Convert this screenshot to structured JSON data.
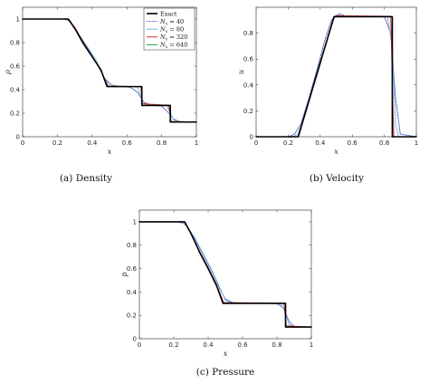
{
  "chart_data": [
    {
      "type": "line",
      "caption": "(a) Density",
      "xlabel": "x",
      "ylabel": "ρ",
      "xlim": [
        0,
        1
      ],
      "ylim": [
        0,
        1.1
      ],
      "xticks": [
        "0",
        "0.2",
        "0.4",
        "0.6",
        "0.8",
        "1"
      ],
      "yticks": [
        "0",
        "0.2",
        "0.4",
        "0.6",
        "0.8",
        "1"
      ],
      "legend": {
        "placement": "top-right",
        "entries": [
          "Exact",
          "N_x = 40",
          "N_x = 80",
          "N_x = 320",
          "N_x = 640"
        ]
      },
      "series": [
        {
          "name": "Exact",
          "color": "#000000",
          "points": [
            [
              0,
              1
            ],
            [
              0.263,
              1
            ],
            [
              0.3,
              0.92
            ],
            [
              0.35,
              0.79
            ],
            [
              0.4,
              0.68
            ],
            [
              0.45,
              0.57
            ],
            [
              0.486,
              0.426
            ],
            [
              0.686,
              0.426
            ],
            [
              0.686,
              0.266
            ],
            [
              0.85,
              0.266
            ],
            [
              0.85,
              0.125
            ],
            [
              1,
              0.125
            ]
          ]
        },
        {
          "name": "N_x = 40",
          "color": "#3b4cc0",
          "points": [
            [
              0,
              1
            ],
            [
              0.22,
              1
            ],
            [
              0.27,
              0.99
            ],
            [
              0.32,
              0.88
            ],
            [
              0.37,
              0.76
            ],
            [
              0.42,
              0.64
            ],
            [
              0.47,
              0.5
            ],
            [
              0.51,
              0.44
            ],
            [
              0.55,
              0.43
            ],
            [
              0.62,
              0.42
            ],
            [
              0.66,
              0.38
            ],
            [
              0.7,
              0.29
            ],
            [
              0.74,
              0.27
            ],
            [
              0.8,
              0.26
            ],
            [
              0.83,
              0.22
            ],
            [
              0.87,
              0.15
            ],
            [
              0.9,
              0.13
            ],
            [
              1,
              0.125
            ]
          ]
        },
        {
          "name": "N_x = 80",
          "color": "#6fb5e0",
          "points": [
            [
              0,
              1
            ],
            [
              0.24,
              1
            ],
            [
              0.27,
              0.98
            ],
            [
              0.32,
              0.88
            ],
            [
              0.37,
              0.77
            ],
            [
              0.42,
              0.66
            ],
            [
              0.47,
              0.5
            ],
            [
              0.5,
              0.43
            ],
            [
              0.55,
              0.43
            ],
            [
              0.66,
              0.425
            ],
            [
              0.68,
              0.35
            ],
            [
              0.7,
              0.28
            ],
            [
              0.75,
              0.27
            ],
            [
              0.83,
              0.265
            ],
            [
              0.85,
              0.2
            ],
            [
              0.87,
              0.14
            ],
            [
              0.9,
              0.127
            ],
            [
              1,
              0.125
            ]
          ]
        },
        {
          "name": "N_x = 320",
          "color": "#d62728",
          "points": [
            [
              0,
              1
            ],
            [
              0.26,
              1
            ],
            [
              0.3,
              0.93
            ],
            [
              0.35,
              0.8
            ],
            [
              0.4,
              0.68
            ],
            [
              0.45,
              0.57
            ],
            [
              0.49,
              0.43
            ],
            [
              0.68,
              0.426
            ],
            [
              0.69,
              0.28
            ],
            [
              0.84,
              0.268
            ],
            [
              0.855,
              0.13
            ],
            [
              1,
              0.125
            ]
          ]
        },
        {
          "name": "N_x = 640",
          "color": "#2ca02c",
          "points": [
            [
              0,
              1
            ],
            [
              0.262,
              1
            ],
            [
              0.3,
              0.92
            ],
            [
              0.35,
              0.79
            ],
            [
              0.4,
              0.68
            ],
            [
              0.45,
              0.57
            ],
            [
              0.487,
              0.427
            ],
            [
              0.685,
              0.426
            ],
            [
              0.688,
              0.27
            ],
            [
              0.848,
              0.266
            ],
            [
              0.852,
              0.126
            ],
            [
              1,
              0.125
            ]
          ]
        }
      ]
    },
    {
      "type": "line",
      "caption": "(b) Velocity",
      "xlabel": "x",
      "ylabel": "u",
      "xlim": [
        0,
        1
      ],
      "ylim": [
        0,
        1.0
      ],
      "xticks": [
        "0",
        "0.2",
        "0.4",
        "0.6",
        "0.8",
        "1"
      ],
      "yticks": [
        "0",
        "0.2",
        "0.4",
        "0.6",
        "0.8"
      ],
      "series": [
        {
          "name": "Exact",
          "color": "#000000",
          "points": [
            [
              0,
              0
            ],
            [
              0.263,
              0
            ],
            [
              0.486,
              0.927
            ],
            [
              0.85,
              0.927
            ],
            [
              0.85,
              0
            ],
            [
              1,
              0
            ]
          ]
        },
        {
          "name": "N_x = 40",
          "color": "#3b4cc0",
          "points": [
            [
              0,
              0
            ],
            [
              0.2,
              0
            ],
            [
              0.24,
              0.02
            ],
            [
              0.28,
              0.1
            ],
            [
              0.33,
              0.3
            ],
            [
              0.38,
              0.52
            ],
            [
              0.43,
              0.75
            ],
            [
              0.47,
              0.9
            ],
            [
              0.52,
              0.95
            ],
            [
              0.56,
              0.93
            ],
            [
              0.8,
              0.93
            ],
            [
              0.84,
              0.8
            ],
            [
              0.87,
              0.3
            ],
            [
              0.9,
              0.02
            ],
            [
              1,
              0
            ]
          ]
        },
        {
          "name": "N_x = 80",
          "color": "#6fb5e0",
          "points": [
            [
              0,
              0
            ],
            [
              0.23,
              0
            ],
            [
              0.26,
              0.02
            ],
            [
              0.3,
              0.15
            ],
            [
              0.35,
              0.36
            ],
            [
              0.4,
              0.56
            ],
            [
              0.45,
              0.78
            ],
            [
              0.48,
              0.9
            ],
            [
              0.5,
              0.94
            ],
            [
              0.55,
              0.93
            ],
            [
              0.82,
              0.93
            ],
            [
              0.85,
              0.7
            ],
            [
              0.87,
              0.1
            ],
            [
              0.89,
              0
            ],
            [
              1,
              0
            ]
          ]
        },
        {
          "name": "N_x = 320",
          "color": "#d62728",
          "points": [
            [
              0,
              0
            ],
            [
              0.258,
              0
            ],
            [
              0.27,
              0.02
            ],
            [
              0.3,
              0.15
            ],
            [
              0.35,
              0.36
            ],
            [
              0.4,
              0.57
            ],
            [
              0.45,
              0.77
            ],
            [
              0.49,
              0.93
            ],
            [
              0.5,
              0.935
            ],
            [
              0.84,
              0.93
            ],
            [
              0.855,
              0.2
            ],
            [
              0.86,
              0
            ],
            [
              1,
              0
            ]
          ]
        },
        {
          "name": "N_x = 640",
          "color": "#2ca02c",
          "points": [
            [
              0,
              0
            ],
            [
              0.262,
              0
            ],
            [
              0.3,
              0.16
            ],
            [
              0.35,
              0.37
            ],
            [
              0.4,
              0.58
            ],
            [
              0.45,
              0.78
            ],
            [
              0.487,
              0.928
            ],
            [
              0.848,
              0.928
            ],
            [
              0.852,
              0
            ],
            [
              1,
              0
            ]
          ]
        }
      ]
    },
    {
      "type": "line",
      "caption": "(c) Pressure",
      "xlabel": "x",
      "ylabel": "p",
      "xlim": [
        0,
        1
      ],
      "ylim": [
        0,
        1.1
      ],
      "xticks": [
        "0",
        "0.2",
        "0.4",
        "0.6",
        "0.8",
        "1"
      ],
      "yticks": [
        "0",
        "0.2",
        "0.4",
        "0.6",
        "0.8",
        "1"
      ],
      "series": [
        {
          "name": "Exact",
          "color": "#000000",
          "points": [
            [
              0,
              1
            ],
            [
              0.263,
              1
            ],
            [
              0.3,
              0.9
            ],
            [
              0.35,
              0.74
            ],
            [
              0.4,
              0.6
            ],
            [
              0.45,
              0.45
            ],
            [
              0.486,
              0.303
            ],
            [
              0.85,
              0.303
            ],
            [
              0.85,
              0.1
            ],
            [
              1,
              0.1
            ]
          ]
        },
        {
          "name": "N_x = 40",
          "color": "#3b4cc0",
          "points": [
            [
              0,
              1
            ],
            [
              0.22,
              1
            ],
            [
              0.27,
              0.98
            ],
            [
              0.32,
              0.86
            ],
            [
              0.37,
              0.72
            ],
            [
              0.42,
              0.58
            ],
            [
              0.47,
              0.42
            ],
            [
              0.5,
              0.34
            ],
            [
              0.54,
              0.31
            ],
            [
              0.6,
              0.305
            ],
            [
              0.8,
              0.3
            ],
            [
              0.84,
              0.26
            ],
            [
              0.87,
              0.15
            ],
            [
              0.9,
              0.105
            ],
            [
              1,
              0.1
            ]
          ]
        },
        {
          "name": "N_x = 80",
          "color": "#6fb5e0",
          "points": [
            [
              0,
              1
            ],
            [
              0.24,
              1
            ],
            [
              0.27,
              0.97
            ],
            [
              0.32,
              0.87
            ],
            [
              0.37,
              0.73
            ],
            [
              0.42,
              0.59
            ],
            [
              0.47,
              0.43
            ],
            [
              0.5,
              0.33
            ],
            [
              0.54,
              0.305
            ],
            [
              0.82,
              0.303
            ],
            [
              0.85,
              0.22
            ],
            [
              0.87,
              0.12
            ],
            [
              0.9,
              0.101
            ],
            [
              1,
              0.1
            ]
          ]
        },
        {
          "name": "N_x = 320",
          "color": "#d62728",
          "points": [
            [
              0,
              1
            ],
            [
              0.26,
              1
            ],
            [
              0.3,
              0.9
            ],
            [
              0.35,
              0.75
            ],
            [
              0.4,
              0.61
            ],
            [
              0.45,
              0.46
            ],
            [
              0.49,
              0.31
            ],
            [
              0.84,
              0.303
            ],
            [
              0.855,
              0.11
            ],
            [
              1,
              0.1
            ]
          ]
        },
        {
          "name": "N_x = 640",
          "color": "#2ca02c",
          "points": [
            [
              0,
              1
            ],
            [
              0.262,
              1
            ],
            [
              0.3,
              0.9
            ],
            [
              0.35,
              0.74
            ],
            [
              0.4,
              0.6
            ],
            [
              0.45,
              0.45
            ],
            [
              0.487,
              0.304
            ],
            [
              0.848,
              0.303
            ],
            [
              0.852,
              0.1
            ],
            [
              1,
              0.1
            ]
          ]
        }
      ]
    }
  ]
}
